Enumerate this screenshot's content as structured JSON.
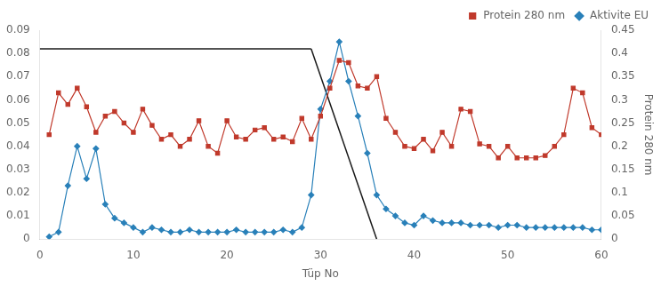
{
  "chart_data": {
    "type": "line",
    "xlabel": "Tüp No",
    "y2label": "Protein 280 nm",
    "xlim": [
      0,
      60
    ],
    "xticks": [
      0,
      10,
      20,
      30,
      40,
      50,
      60
    ],
    "ylim": [
      0,
      0.09
    ],
    "yticks": [
      0,
      0.01,
      0.02,
      0.03,
      0.04,
      0.05,
      0.06,
      0.07,
      0.08,
      0.09
    ],
    "y2lim": [
      0,
      0.45
    ],
    "y2ticks": [
      0,
      0.05,
      0.1,
      0.15,
      0.2,
      0.25,
      0.3,
      0.35,
      0.4,
      0.45
    ],
    "grid": false,
    "legend": "upper right",
    "series": [
      {
        "name": "Protein 280 nm",
        "color": "#c0392b",
        "marker": "square",
        "axis": "y2",
        "x": [
          1,
          2,
          3,
          4,
          5,
          6,
          7,
          8,
          9,
          10,
          11,
          12,
          13,
          14,
          15,
          16,
          17,
          18,
          19,
          20,
          21,
          22,
          23,
          24,
          25,
          26,
          27,
          28,
          29,
          30,
          31,
          32,
          33,
          34,
          35,
          36,
          37,
          38,
          39,
          40,
          41,
          42,
          43,
          44,
          45,
          46,
          47,
          48,
          49,
          50,
          51,
          52,
          53,
          54,
          55,
          56,
          57,
          58,
          59,
          60
        ],
        "values": [
          0.225,
          0.315,
          0.29,
          0.325,
          0.285,
          0.23,
          0.265,
          0.275,
          0.25,
          0.23,
          0.28,
          0.245,
          0.215,
          0.225,
          0.2,
          0.215,
          0.255,
          0.2,
          0.185,
          0.255,
          0.22,
          0.215,
          0.235,
          0.24,
          0.215,
          0.22,
          0.21,
          0.26,
          0.215,
          0.265,
          0.325,
          0.385,
          0.38,
          0.33,
          0.325,
          0.35,
          0.26,
          0.23,
          0.2,
          0.195,
          0.215,
          0.19,
          0.23,
          0.2,
          0.28,
          0.275,
          0.205,
          0.2,
          0.175,
          0.2,
          0.175,
          0.175,
          0.175,
          0.18,
          0.2,
          0.225,
          0.325,
          0.315,
          0.24,
          0.225
        ]
      },
      {
        "name": "Aktivite EU",
        "color": "#2980b9",
        "marker": "diamond",
        "axis": "y",
        "x": [
          1,
          2,
          3,
          4,
          5,
          6,
          7,
          8,
          9,
          10,
          11,
          12,
          13,
          14,
          15,
          16,
          17,
          18,
          19,
          20,
          21,
          22,
          23,
          24,
          25,
          26,
          27,
          28,
          29,
          30,
          31,
          32,
          33,
          34,
          35,
          36,
          37,
          38,
          39,
          40,
          41,
          42,
          43,
          44,
          45,
          46,
          47,
          48,
          49,
          50,
          51,
          52,
          53,
          54,
          55,
          56,
          57,
          58,
          59,
          60
        ],
        "values": [
          0.001,
          0.003,
          0.023,
          0.04,
          0.026,
          0.039,
          0.015,
          0.009,
          0.007,
          0.005,
          0.003,
          0.005,
          0.004,
          0.003,
          0.003,
          0.004,
          0.003,
          0.003,
          0.003,
          0.003,
          0.004,
          0.003,
          0.003,
          0.003,
          0.003,
          0.004,
          0.003,
          0.005,
          0.019,
          0.056,
          0.068,
          0.085,
          0.068,
          0.053,
          0.037,
          0.019,
          0.013,
          0.01,
          0.007,
          0.006,
          0.01,
          0.008,
          0.007,
          0.007,
          0.007,
          0.006,
          0.006,
          0.006,
          0.005,
          0.006,
          0.006,
          0.005,
          0.005,
          0.005,
          0.005,
          0.005,
          0.005,
          0.005,
          0.004,
          0.004
        ]
      }
    ],
    "lines": [
      {
        "x": [
          0,
          29
        ],
        "values": [
          0.082,
          0.082
        ],
        "color": "#1a1a1a",
        "axis": "y"
      },
      {
        "x": [
          29,
          36
        ],
        "values": [
          0.082,
          0
        ],
        "color": "#1a1a1a",
        "axis": "y"
      }
    ]
  }
}
